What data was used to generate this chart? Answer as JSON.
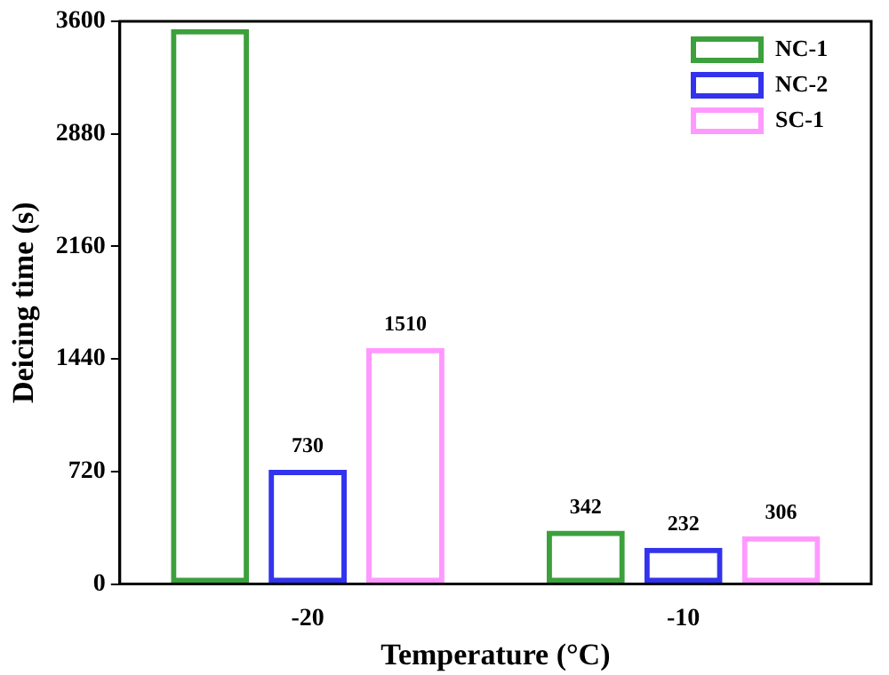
{
  "chart_data": {
    "type": "bar",
    "xlabel": "Temperature (°C)",
    "ylabel": "Deicing time (s)",
    "categories": [
      "-20",
      "-10"
    ],
    "series": [
      {
        "name": "NC-1",
        "color": "#3ca03c",
        "values": [
          3550,
          342
        ],
        "value_labels": [
          null,
          "342"
        ]
      },
      {
        "name": "NC-2",
        "color": "#3333ee",
        "values": [
          730,
          232
        ],
        "value_labels": [
          "730",
          "232"
        ]
      },
      {
        "name": "SC-1",
        "color": "#ff99ff",
        "values": [
          1510,
          306
        ],
        "value_labels": [
          "1510",
          "306"
        ]
      }
    ],
    "ylim": [
      0,
      3600
    ],
    "yticks": [
      0,
      720,
      1440,
      2160,
      2880,
      3600
    ],
    "grid": false,
    "legend": "top right"
  }
}
